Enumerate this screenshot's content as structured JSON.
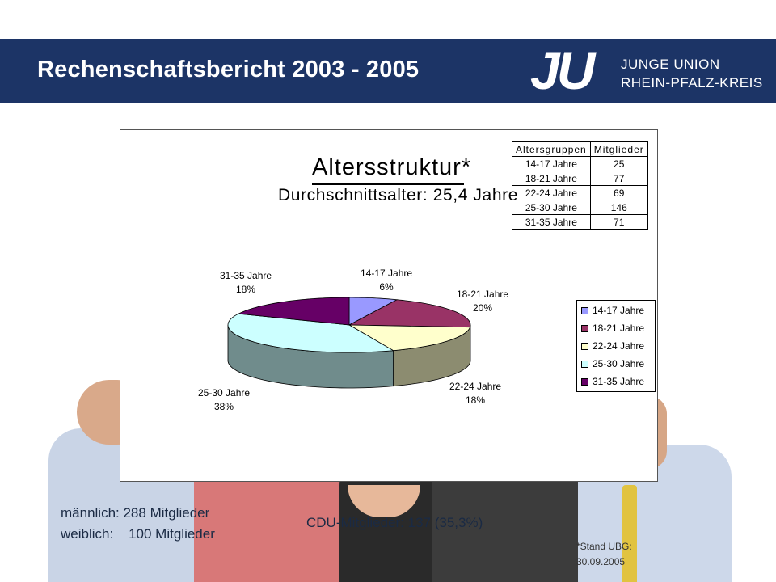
{
  "header": {
    "title": "Rechenschaftsbericht 2003 - 2005",
    "logo_mark": "JU",
    "logo_line1": "JUNGE UNION",
    "logo_line2": "RHEIN-PFALZ-KREIS"
  },
  "chart_data": {
    "type": "pie",
    "title": "Altersstruktur*",
    "subtitle": "Durchschnittsalter: 25,4 Jahre",
    "categories": [
      "14-17 Jahre",
      "18-21 Jahre",
      "22-24 Jahre",
      "25-30 Jahre",
      "31-35 Jahre"
    ],
    "values": [
      25,
      77,
      69,
      146,
      71
    ],
    "percent_labels": [
      "6%",
      "20%",
      "18%",
      "38%",
      "18%"
    ],
    "colors": [
      "#9999ff",
      "#993366",
      "#ffffcc",
      "#ccffff",
      "#660066"
    ],
    "legend_position": "right",
    "table": {
      "headers": [
        "Altersgruppen",
        "Mitglieder"
      ],
      "rows": [
        [
          "14-17 Jahre",
          "25"
        ],
        [
          "18-21 Jahre",
          "77"
        ],
        [
          "22-24 Jahre",
          "69"
        ],
        [
          "25-30 Jahre",
          "146"
        ],
        [
          "31-35 Jahre",
          "71"
        ]
      ]
    }
  },
  "stats": {
    "male": "männlich: 288 Mitglieder",
    "female": "weiblich:    100 Mitglieder",
    "cdu": "CDU-Mitglieder: 137 (35,3%)",
    "stand_line1": "*Stand UBG:",
    "stand_line2": "30.09.2005"
  }
}
